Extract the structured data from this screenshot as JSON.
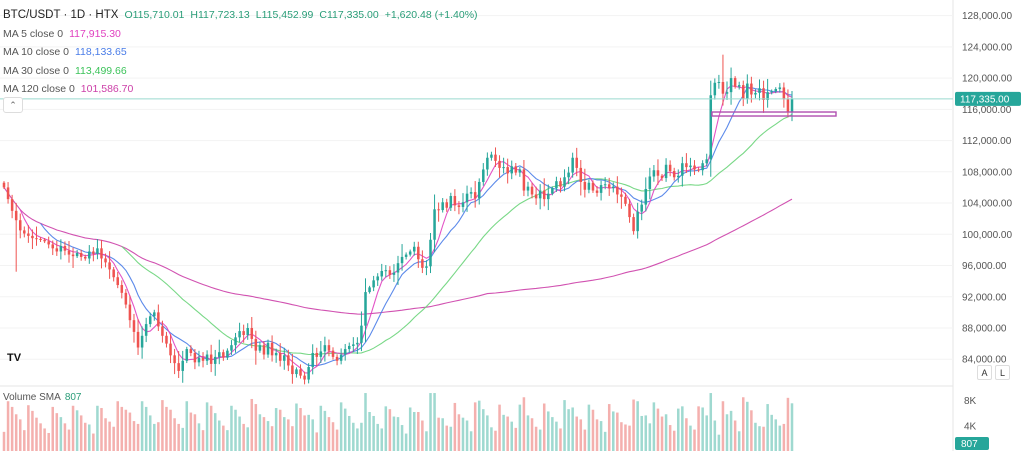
{
  "header": {
    "symbol": "BTC/USDT · 1D · HTX",
    "open": "O115,710.01",
    "high": "H117,723.13",
    "low": "L115,452.99",
    "close": "C117,335.00",
    "change": "+1,620.48 (+1.40%)"
  },
  "indicators": [
    {
      "label": "MA 5 close 0",
      "value": "117,915.30",
      "color": "#e040c0"
    },
    {
      "label": "MA 10 close 0",
      "value": "118,133.65",
      "color": "#4a7de8"
    },
    {
      "label": "MA 30 close 0",
      "value": "113,499.66",
      "color": "#3cc35a"
    },
    {
      "label": "MA 120 close 0",
      "value": "101,586.70",
      "color": "#cc3fa8"
    }
  ],
  "volume": {
    "label": "Volume SMA",
    "value": "807",
    "axis_ticks": [
      "8K",
      "4K"
    ]
  },
  "controls": {
    "auto": "A",
    "log": "L",
    "logo": "TV"
  },
  "colors": {
    "up": "#26a69a",
    "down": "#ef5350",
    "last_price_bg": "#26a69a"
  },
  "chart_data": {
    "type": "candlestick",
    "title": "BTC/USDT · 1D · HTX",
    "y_ticks": [
      "128,000.00",
      "124,000.00",
      "120,000.00",
      "116,000.00",
      "112,000.00",
      "108,000.00",
      "104,000.00",
      "100,000.00",
      "96,000.00",
      "92,000.00",
      "88,000.00",
      "84,000.00"
    ],
    "y_tick_values": [
      128000,
      124000,
      120000,
      116000,
      112000,
      108000,
      104000,
      100000,
      96000,
      92000,
      88000,
      84000
    ],
    "ylim": [
      80700,
      130000
    ],
    "last_price": 117335,
    "last_price_label": "117,335.00",
    "support_level": 115400,
    "ohlc_close_sequence": [
      106000,
      104500,
      103000,
      101800,
      100500,
      100100,
      99800,
      99500,
      99400,
      99300,
      99100,
      98700,
      98200,
      97800,
      98500,
      97900,
      97400,
      97200,
      97600,
      97100,
      96900,
      97800,
      97500,
      98200,
      96900,
      96400,
      95500,
      94500,
      93500,
      92500,
      91000,
      89000,
      87500,
      85500,
      87000,
      88500,
      89500,
      90000,
      88200,
      87000,
      86000,
      84500,
      83500,
      82500,
      83800,
      85300,
      84800,
      83600,
      84200,
      83800,
      84600,
      83400,
      84300,
      84900,
      84200,
      85100,
      85800,
      86800,
      87600,
      87100,
      88000,
      86600,
      85100,
      85800,
      84600,
      86100,
      84500,
      84800,
      83800,
      84500,
      83200,
      82100,
      82700,
      81900,
      81400,
      83000,
      84800,
      84300,
      85000,
      85800,
      85100,
      84300,
      83800,
      84600,
      85300,
      85700,
      85900,
      86100,
      88300,
      92600,
      93200,
      94100,
      94600,
      95300,
      95400,
      94800,
      95100,
      96300,
      97100,
      97400,
      97800,
      98400,
      96800,
      95700,
      95900,
      99300,
      103200,
      103100,
      104100,
      103400,
      104900,
      103700,
      103500,
      104100,
      105200,
      105400,
      104600,
      106700,
      108300,
      109800,
      110200,
      109400,
      108500,
      108600,
      107800,
      108700,
      107900,
      108300,
      105600,
      106100,
      105100,
      104600,
      105600,
      104500,
      105200,
      105900,
      106800,
      106100,
      107300,
      107900,
      109800,
      108500,
      106700,
      105700,
      106600,
      105600,
      105300,
      106300,
      106400,
      105900,
      106100,
      105100,
      104800,
      103900,
      102200,
      100400,
      102900,
      103800,
      105800,
      107400,
      108200,
      107500,
      107200,
      108900,
      108100,
      107300,
      107500,
      109100,
      108600,
      108800,
      108300,
      108200,
      109100,
      109600,
      117800,
      119400,
      119500,
      118000,
      118200,
      120000,
      118900,
      119100,
      117400,
      119300,
      117900,
      118100,
      118700,
      117200,
      118200,
      118300,
      118600,
      118800,
      117300,
      115700,
      117335
    ],
    "volume_scale_max": 10000,
    "moving_averages": [
      {
        "name": "MA 5 close 0",
        "latest": 117915.3
      },
      {
        "name": "MA 10 close 0",
        "latest": 118133.65
      },
      {
        "name": "MA 30 close 0",
        "latest": 113499.66
      },
      {
        "name": "MA 120 close 0",
        "latest": 101586.7
      }
    ],
    "grid": true
  }
}
